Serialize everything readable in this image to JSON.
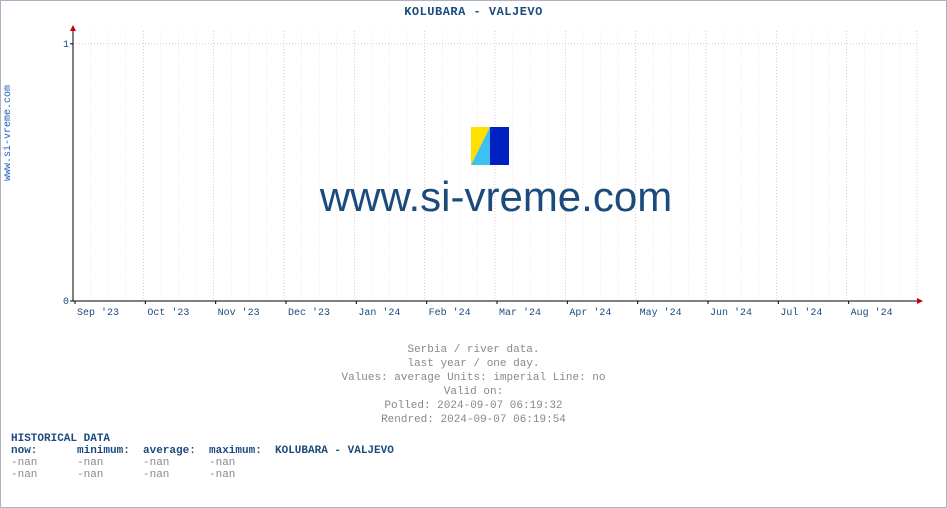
{
  "title": "KOLUBARA -  VALJEVO",
  "side_label": "www.si-vreme.com",
  "watermark_text": "www.si-vreme.com",
  "chart": {
    "type": "line",
    "xlim": [
      0,
      12
    ],
    "ylim": [
      0,
      1.05
    ],
    "yticks": [
      0,
      1
    ],
    "ytick_labels": [
      "0",
      "1"
    ],
    "xtick_labels": [
      "Sep '23",
      "Oct '23",
      "Nov '23",
      "Dec '23",
      "Jan '24",
      "Feb '24",
      "Mar '24",
      "Apr '24",
      "May '24",
      "Jun '24",
      "Jul '24",
      "Aug '24"
    ],
    "minor_x_per_major": 4,
    "plot_bg": "#ffffff",
    "grid_major_color": "#e0a0a0",
    "grid_minor_color": "#f3d0d0",
    "grid_dash": "1,2",
    "axis_color": "#000000",
    "tick_font_color": "#1a4b7c",
    "tick_font_size": 10,
    "arrow_color": "#cc0000",
    "series": []
  },
  "logo_colors": {
    "triangle": "#ffe000",
    "rect": "#0020c0",
    "diag": "#40c0f0"
  },
  "caption": {
    "l1": "Serbia / river data.",
    "l2": "last year / one day.",
    "l3": "Values: average  Units: imperial  Line: no",
    "l4": "Valid on:",
    "l5": "Polled: 2024-09-07 06:19:32",
    "l6": "Rendred: 2024-09-07 06:19:54"
  },
  "historical": {
    "heading": "HISTORICAL DATA",
    "headers": [
      "now:",
      "minimum:",
      "average:",
      "maximum:"
    ],
    "station": "KOLUBARA -  VALJEVO",
    "rows": [
      [
        "-nan",
        "-nan",
        "-nan",
        "-nan"
      ],
      [
        "-nan",
        "-nan",
        "-nan",
        "-nan"
      ]
    ]
  },
  "colors": {
    "title": "#1a4b7c",
    "caption": "#888888",
    "side_label": "#1f5fbf"
  }
}
